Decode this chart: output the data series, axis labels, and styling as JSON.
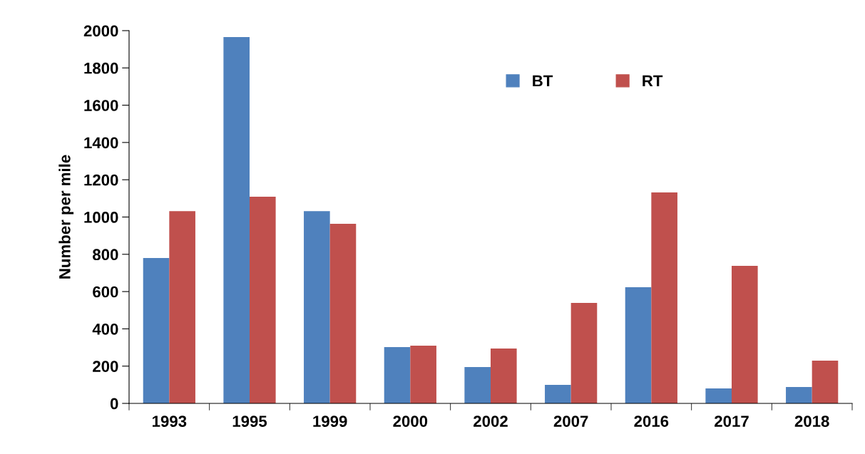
{
  "chart_data": {
    "type": "bar",
    "ylabel": "Number per mile",
    "categories": [
      "1993",
      "1995",
      "1999",
      "2000",
      "2002",
      "2007",
      "2016",
      "2017",
      "2018"
    ],
    "series": [
      {
        "name": "BT",
        "color": "#4f81bd",
        "values": [
          780,
          1966,
          1032,
          302,
          195,
          99,
          623,
          80,
          88
        ]
      },
      {
        "name": "RT",
        "color": "#c0504d",
        "values": [
          1032,
          1109,
          964,
          310,
          294,
          539,
          1132,
          738,
          229
        ]
      }
    ],
    "ylim": [
      0,
      2000
    ],
    "yticks": [
      0,
      200,
      400,
      600,
      800,
      1000,
      1200,
      1400,
      1600,
      1800,
      2000
    ],
    "grid": false,
    "legend": "top"
  }
}
